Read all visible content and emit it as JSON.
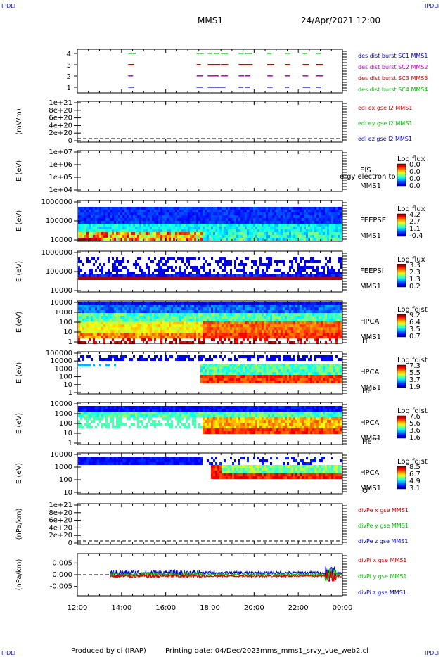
{
  "corner": "IPDLI",
  "header": {
    "spacecraft": "MMS1",
    "date": "24/Apr/2021 12:00"
  },
  "footer": {
    "produced": "Produced by cl (IRAP)",
    "printing": "Printing date: 04/Dec/2023",
    "file": "mms_mms1_srvy_vue_web2.cl"
  },
  "colors": {
    "red": "#d40000",
    "green": "#00c000",
    "blue": "#0000cc",
    "magenta": "#cc00cc"
  },
  "x_axis": {
    "ticks": [
      "12:00",
      "14:00",
      "16:00",
      "18:00",
      "20:00",
      "22:00",
      "00:00"
    ]
  },
  "chart_data": [
    {
      "type": "scatter",
      "id": "burst",
      "yticks": [
        "1",
        "2",
        "3",
        "4"
      ],
      "legend": [
        {
          "text": "des dist burst SC1 MMS1",
          "color": "blue"
        },
        {
          "text": "des dist burst SC2 MMS2",
          "color": "magenta"
        },
        {
          "text": "des dist burst SC3 MMS3",
          "color": "red"
        },
        {
          "text": "des dist burst SC4 MMS4",
          "color": "green"
        }
      ],
      "bursts_hours": [
        14.3,
        17.4,
        17.9,
        18.2,
        18.5,
        19.3,
        19.6,
        20.6,
        21.4,
        22.2,
        22.8
      ]
    },
    {
      "type": "line",
      "id": "edi",
      "ylabel": "(mV/m)",
      "yticks": [
        "1e+21",
        "8e+20",
        "6e+20",
        "4e+20",
        "2e+20",
        "0"
      ],
      "legend": [
        {
          "text": "edi ex gse l2 MMS1",
          "color": "red"
        },
        {
          "text": "edi ey gse l2 MMS1",
          "color": "green"
        },
        {
          "text": "edi ez gse l2 MMS1",
          "color": "blue"
        }
      ]
    },
    {
      "type": "heatmap",
      "id": "eis",
      "ylabel": "E (eV)",
      "yticks": [
        "1e+07",
        "1e+06",
        "1e+05",
        "1e+04"
      ],
      "instrument": [
        "EIS",
        "MMS1"
      ],
      "overlay": "ergy electron to",
      "cbar": {
        "title": "Log flux",
        "ticks": [
          "0.0",
          "0.0",
          "0.0",
          "0.0"
        ]
      }
    },
    {
      "type": "heatmap",
      "id": "feepse",
      "ylabel": "E (eV)",
      "yticks": [
        "1000000",
        "100000",
        "10000"
      ],
      "instrument": [
        "FEEPSE",
        "MMS1"
      ],
      "cbar": {
        "title": "Log flux",
        "ticks": [
          "4.2",
          "2.7",
          "1.1",
          "-0.4"
        ]
      }
    },
    {
      "type": "heatmap",
      "id": "feepsi",
      "ylabel": "E (eV)",
      "yticks": [
        "1000000",
        "100000",
        "10000"
      ],
      "instrument": [
        "FEEPSI",
        "MMS1"
      ],
      "cbar": {
        "title": "Log flux",
        "ticks": [
          "3.3",
          "2.3",
          "1.3",
          "0.2"
        ]
      }
    },
    {
      "type": "heatmap",
      "id": "hpca_h",
      "ylabel": "E (eV)",
      "yticks": [
        "10000",
        "1000",
        "100",
        "10",
        "1"
      ],
      "instrument": [
        "HPCA",
        "MMS1"
      ],
      "species": "H",
      "charge": "+",
      "cbar": {
        "title": "Log fdist",
        "ticks": [
          "9.2",
          "6.4",
          "3.5",
          "0.7"
        ]
      }
    },
    {
      "type": "heatmap",
      "id": "hpca_he",
      "ylabel": "E (eV)",
      "yticks": [
        "100000",
        "10000",
        "1000",
        "100",
        "10",
        "1"
      ],
      "instrument": [
        "HPCA",
        "MMS1"
      ],
      "species": "He",
      "charge": "+",
      "cbar": {
        "title": "Log fdist",
        "ticks": [
          "7.3",
          "5.5",
          "3.7",
          "1.9"
        ]
      }
    },
    {
      "type": "heatmap",
      "id": "hpca_hepp",
      "ylabel": "E (eV)",
      "yticks": [
        "10000",
        "1000",
        "100",
        "10",
        "1"
      ],
      "instrument": [
        "HPCA",
        "MMS1"
      ],
      "species": "He",
      "charge": "++",
      "cbar": {
        "title": "Log fdist",
        "ticks": [
          "7.6",
          "5.6",
          "3.6",
          "1.6"
        ]
      }
    },
    {
      "type": "heatmap",
      "id": "hpca_o",
      "ylabel": "E (eV)",
      "yticks": [
        "10000",
        "1000",
        "100",
        "10"
      ],
      "instrument": [
        "HPCA",
        "MMS1"
      ],
      "species": "O",
      "charge": "+",
      "cbar": {
        "title": "Log fdist",
        "ticks": [
          "8.5",
          "6.7",
          "4.9",
          "3.1"
        ]
      }
    },
    {
      "type": "line",
      "id": "divpe",
      "ylabel": "(nPa/km)",
      "yticks": [
        "1e+21",
        "8e+20",
        "6e+20",
        "4e+20",
        "2e+20",
        "0"
      ],
      "legend": [
        {
          "text": "divPe x gse MMS1",
          "color": "red"
        },
        {
          "text": "divPe y gse MMS1",
          "color": "green"
        },
        {
          "text": "divPe z gse MMS1",
          "color": "blue"
        }
      ]
    },
    {
      "type": "line",
      "id": "divpi",
      "ylabel": "(nPa/km)",
      "yticks": [
        "0.005",
        "0.000",
        "-0.005"
      ],
      "ylim": [
        -0.009,
        0.009
      ],
      "legend": [
        {
          "text": "divPi x gse MMS1",
          "color": "red"
        },
        {
          "text": "divPi y gse MMS1",
          "color": "green"
        },
        {
          "text": "divPi z gse MMS1",
          "color": "blue"
        }
      ]
    }
  ]
}
